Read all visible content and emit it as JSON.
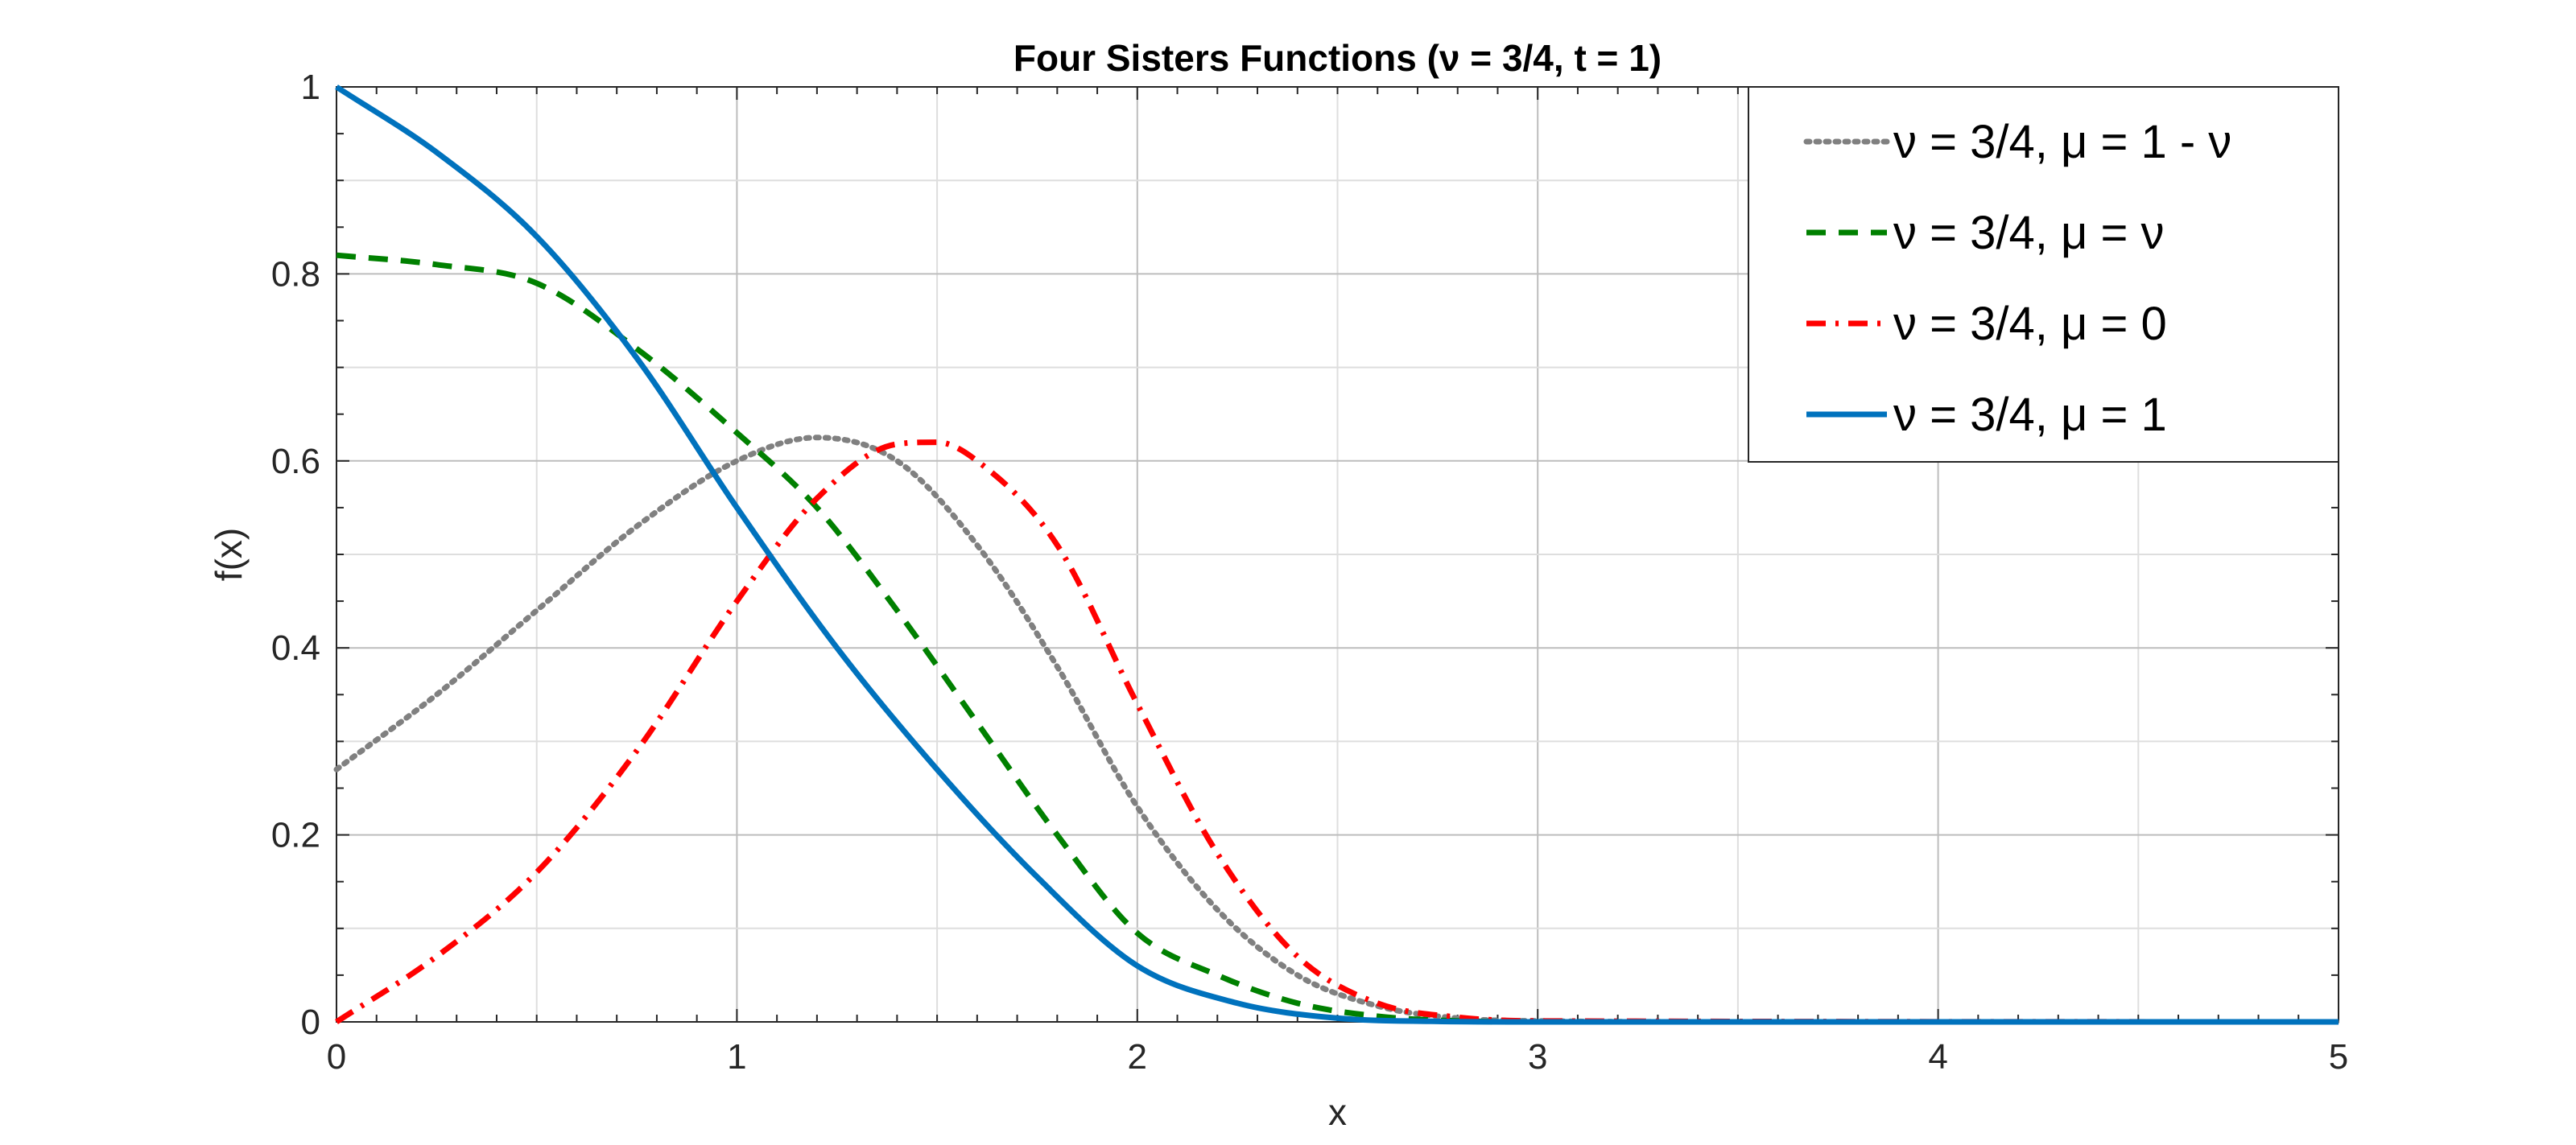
{
  "chart_data": {
    "type": "line",
    "title": "Four Sisters Functions (ν = 3/4, t = 1)",
    "xlabel": "x",
    "ylabel": "f(x)",
    "xlim": [
      0,
      5
    ],
    "ylim": [
      0,
      1
    ],
    "xticks": [
      "0",
      "1",
      "2",
      "3",
      "4",
      "5"
    ],
    "yticks": [
      "0",
      "0.2",
      "0.4",
      "0.6",
      "0.8",
      "1"
    ],
    "grid": "on",
    "legend_position": "top-right",
    "series": [
      {
        "name": "ν = 3/4, μ = 1 - ν",
        "color": "#808080",
        "style": "dotted",
        "x": [
          0,
          0.25,
          0.5,
          0.75,
          1.0,
          1.2,
          1.4,
          1.6,
          1.8,
          2.0,
          2.2,
          2.4,
          2.6,
          2.8,
          3.0,
          3.5,
          5.0
        ],
        "y": [
          0.27,
          0.35,
          0.44,
          0.53,
          0.6,
          0.625,
          0.6,
          0.51,
          0.38,
          0.23,
          0.12,
          0.05,
          0.017,
          0.004,
          0.001,
          0,
          0
        ]
      },
      {
        "name": "ν = 3/4, μ = ν",
        "color": "#008000",
        "style": "dashed",
        "x": [
          0,
          0.25,
          0.5,
          0.75,
          1.0,
          1.2,
          1.4,
          1.6,
          1.8,
          2.0,
          2.2,
          2.4,
          2.6,
          2.8,
          3.0,
          5.0
        ],
        "y": [
          0.82,
          0.81,
          0.79,
          0.72,
          0.63,
          0.55,
          0.44,
          0.32,
          0.2,
          0.095,
          0.05,
          0.02,
          0.006,
          0.001,
          0,
          0
        ]
      },
      {
        "name": "ν = 3/4, μ = 0",
        "color": "#ff0000",
        "style": "dash-dot",
        "x": [
          0,
          0.25,
          0.5,
          0.75,
          1.0,
          1.2,
          1.4,
          1.5,
          1.6,
          1.8,
          2.0,
          2.2,
          2.4,
          2.6,
          2.8,
          3.0,
          5.0
        ],
        "y": [
          0.0,
          0.07,
          0.16,
          0.29,
          0.45,
          0.56,
          0.618,
          0.62,
          0.6,
          0.51,
          0.34,
          0.18,
          0.07,
          0.02,
          0.005,
          0.001,
          0
        ]
      },
      {
        "name": "ν = 3/4, μ = 1",
        "color": "#0072bd",
        "style": "solid",
        "x": [
          0,
          0.25,
          0.5,
          0.75,
          1.0,
          1.25,
          1.5,
          1.75,
          2.0,
          2.25,
          2.5,
          2.75,
          3.0,
          5.0
        ],
        "y": [
          1.0,
          0.93,
          0.84,
          0.71,
          0.55,
          0.4,
          0.27,
          0.155,
          0.06,
          0.02,
          0.004,
          0.0005,
          0,
          0
        ]
      }
    ]
  }
}
